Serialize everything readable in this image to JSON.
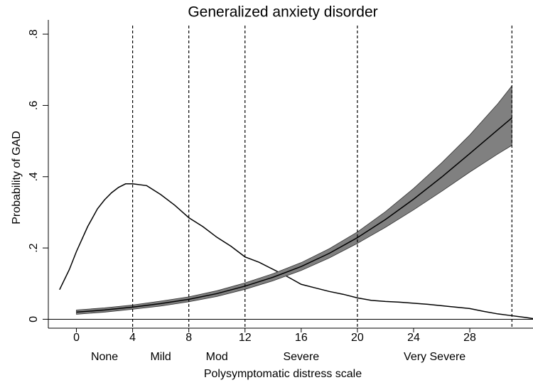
{
  "chart_data": {
    "type": "line",
    "title": "Generalized anxiety disorder",
    "x_label": "Polysymptomatic distress scale",
    "y_label": "Probability of GAD",
    "xlim": [
      -2,
      32.5
    ],
    "ylim": [
      -0.025,
      0.84
    ],
    "xticks": [
      0,
      4,
      8,
      12,
      16,
      20,
      24,
      28
    ],
    "yticks": [
      0,
      {
        "value": 0.2,
        "label": ".2"
      },
      {
        "value": 0.4,
        "label": ".4"
      },
      {
        "value": 0.6,
        "label": ".6"
      },
      {
        "value": 0.8,
        "label": ".8"
      }
    ],
    "cutoffs": [
      4,
      8,
      12,
      20,
      31
    ],
    "bands": [
      {
        "label": "None",
        "range": [
          0,
          4
        ]
      },
      {
        "label": "Mild",
        "range": [
          4,
          8
        ]
      },
      {
        "label": "Mod",
        "range": [
          8,
          12
        ]
      },
      {
        "label": "Severe",
        "range": [
          12,
          20
        ]
      },
      {
        "label": "Very Severe",
        "range": [
          20,
          31
        ]
      }
    ],
    "series": [
      {
        "color": "#000000",
        "x": [
          -1.2,
          -0.5,
          0,
          0.8,
          1.5,
          2,
          2.5,
          3,
          3.5,
          4,
          5,
          6,
          7,
          8,
          9,
          10,
          11,
          12,
          13,
          14,
          15,
          16,
          17,
          18,
          19,
          20,
          21,
          22,
          23,
          24,
          25,
          26,
          27,
          28,
          29,
          30,
          31,
          32,
          32.5
        ],
        "values": [
          0.083,
          0.14,
          0.19,
          0.26,
          0.31,
          0.335,
          0.355,
          0.37,
          0.38,
          0.38,
          0.375,
          0.35,
          0.32,
          0.285,
          0.26,
          0.23,
          0.205,
          0.175,
          0.16,
          0.14,
          0.12,
          0.098,
          0.088,
          0.078,
          0.07,
          0.06,
          0.053,
          0.05,
          0.048,
          0.045,
          0.042,
          0.038,
          0.034,
          0.03,
          0.022,
          0.015,
          0.01,
          0.005,
          0.002
        ]
      },
      {
        "color": "#000000",
        "band_color": "#808080",
        "x": [
          0,
          2,
          4,
          6,
          8,
          10,
          12,
          14,
          16,
          18,
          20,
          22,
          24,
          26,
          28,
          30,
          31
        ],
        "values": [
          0.02,
          0.026,
          0.034,
          0.044,
          0.056,
          0.072,
          0.093,
          0.118,
          0.148,
          0.185,
          0.229,
          0.28,
          0.337,
          0.399,
          0.465,
          0.532,
          0.565
        ],
        "lower": [
          0.014,
          0.02,
          0.028,
          0.037,
          0.049,
          0.064,
          0.084,
          0.108,
          0.137,
          0.172,
          0.213,
          0.258,
          0.307,
          0.359,
          0.413,
          0.464,
          0.488
        ],
        "upper": [
          0.026,
          0.032,
          0.04,
          0.051,
          0.063,
          0.08,
          0.102,
          0.128,
          0.159,
          0.198,
          0.245,
          0.302,
          0.367,
          0.439,
          0.517,
          0.605,
          0.655
        ]
      }
    ]
  }
}
